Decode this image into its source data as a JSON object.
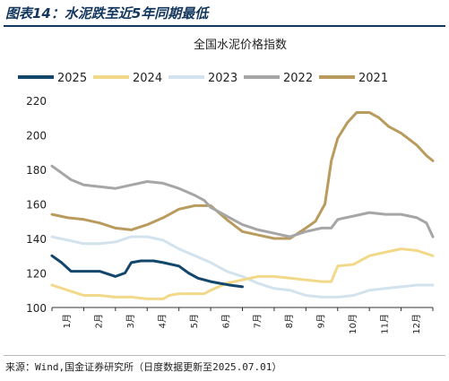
{
  "figure_title": "图表14：水泥跌至近5年同期最低",
  "source_note": "来源：Wind,国金证券研究所（日度数据更新至2025.07.01）",
  "chart_data": {
    "type": "line",
    "title": "全国水泥价格指数",
    "xlabel": "",
    "ylabel": "",
    "categories": [
      "1月",
      "2月",
      "3月",
      "4月",
      "5月",
      "6月",
      "7月",
      "8月",
      "9月",
      "10月",
      "11月",
      "12月"
    ],
    "x_range": [
      1,
      13
    ],
    "ylim": [
      100,
      220
    ],
    "yticks": [
      100,
      120,
      140,
      160,
      180,
      200,
      220
    ],
    "grid": false,
    "legend_position": "top",
    "series": [
      {
        "name": "2025",
        "color": "#13466b",
        "x": [
          1.0,
          1.3,
          1.6,
          2.0,
          2.5,
          3.0,
          3.3,
          3.5,
          3.8,
          4.2,
          4.5,
          5.0,
          5.3,
          5.6,
          6.0,
          6.3,
          6.6,
          7.0
        ],
        "values": [
          130,
          126,
          121,
          121,
          121,
          118,
          120,
          126,
          127,
          127,
          126,
          124,
          120,
          117,
          115,
          114,
          113,
          112
        ]
      },
      {
        "name": "2024",
        "color": "#f2d98a",
        "x": [
          1.0,
          1.5,
          2.0,
          2.5,
          3.0,
          3.5,
          4.0,
          4.5,
          4.7,
          5.0,
          5.5,
          5.8,
          6.0,
          6.5,
          7.0,
          7.5,
          8.0,
          8.5,
          9.0,
          9.5,
          9.8,
          10.0,
          10.5,
          11.0,
          11.5,
          12.0,
          12.5,
          13.0
        ],
        "values": [
          113,
          110,
          107,
          107,
          106,
          106,
          105,
          105,
          107,
          108,
          108,
          108,
          110,
          114,
          116,
          118,
          118,
          117,
          116,
          115,
          115,
          124,
          125,
          130,
          132,
          134,
          133,
          130
        ]
      },
      {
        "name": "2023",
        "color": "#d3e3ee",
        "x": [
          1.0,
          1.5,
          2.0,
          2.5,
          3.0,
          3.5,
          4.0,
          4.5,
          5.0,
          5.5,
          6.0,
          6.5,
          7.0,
          7.5,
          8.0,
          8.5,
          9.0,
          9.5,
          10.0,
          10.5,
          11.0,
          11.5,
          12.0,
          12.5,
          13.0
        ],
        "values": [
          141,
          139,
          137,
          137,
          138,
          141,
          141,
          139,
          134,
          130,
          126,
          121,
          118,
          114,
          111,
          110,
          107,
          106,
          106,
          107,
          110,
          111,
          112,
          113,
          113
        ]
      },
      {
        "name": "2022",
        "color": "#a6a6a6",
        "x": [
          1.0,
          1.3,
          1.6,
          2.0,
          2.5,
          3.0,
          3.5,
          4.0,
          4.5,
          5.0,
          5.5,
          5.8,
          6.0,
          6.5,
          7.0,
          7.5,
          8.0,
          8.5,
          9.0,
          9.5,
          9.8,
          10.0,
          10.5,
          11.0,
          11.5,
          12.0,
          12.5,
          12.8,
          13.0
        ],
        "values": [
          182,
          178,
          174,
          171,
          170,
          169,
          171,
          173,
          172,
          169,
          165,
          162,
          158,
          153,
          148,
          145,
          143,
          141,
          144,
          146,
          146,
          151,
          153,
          155,
          154,
          154,
          152,
          149,
          141
        ]
      },
      {
        "name": "2021",
        "color": "#b99b5e",
        "x": [
          1.0,
          1.5,
          2.0,
          2.5,
          3.0,
          3.5,
          4.0,
          4.5,
          5.0,
          5.5,
          6.0,
          6.5,
          7.0,
          7.5,
          8.0,
          8.5,
          9.0,
          9.3,
          9.6,
          9.8,
          10.0,
          10.3,
          10.6,
          11.0,
          11.3,
          11.6,
          12.0,
          12.5,
          12.8,
          13.0
        ],
        "values": [
          154,
          152,
          151,
          149,
          146,
          145,
          148,
          152,
          157,
          159,
          159,
          151,
          144,
          142,
          140,
          140,
          146,
          150,
          160,
          185,
          198,
          207,
          213,
          213,
          210,
          205,
          201,
          194,
          188,
          185
        ]
      }
    ]
  }
}
